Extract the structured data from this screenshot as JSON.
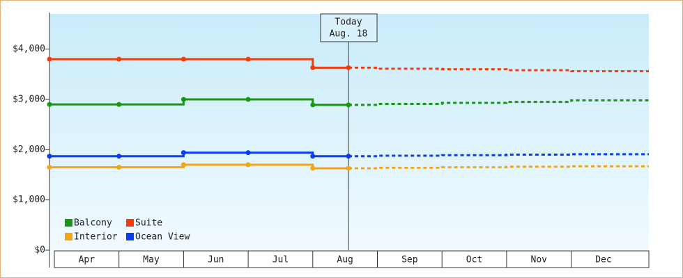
{
  "chart_data": {
    "type": "step-line",
    "categories": [
      "Apr",
      "May",
      "Jun",
      "Jul",
      "Aug",
      "Sep",
      "Oct",
      "Nov",
      "Dec"
    ],
    "today_label": [
      "Today",
      "Aug. 18"
    ],
    "ylim": [
      0,
      4700
    ],
    "yticks": [
      {
        "value": 0,
        "label": "$0"
      },
      {
        "value": 1000,
        "label": "$1,000"
      },
      {
        "value": 2000,
        "label": "$2,000"
      },
      {
        "value": 3000,
        "label": "$3,000"
      },
      {
        "value": 4000,
        "label": "$4,000"
      }
    ],
    "series": [
      {
        "name": "Balcony",
        "color": "#17990f",
        "values": [
          2900,
          2900,
          3000,
          3000,
          2890,
          null,
          null,
          null,
          null
        ],
        "forecast": [
          null,
          null,
          null,
          null,
          2890,
          2910,
          2930,
          2950,
          2980
        ]
      },
      {
        "name": "Suite",
        "color": "#f23c0c",
        "values": [
          3800,
          3800,
          3800,
          3800,
          3630,
          null,
          null,
          null,
          null
        ],
        "forecast": [
          null,
          null,
          null,
          null,
          3630,
          3610,
          3600,
          3580,
          3560
        ]
      },
      {
        "name": "Interior",
        "color": "#f5a512",
        "values": [
          1650,
          1650,
          1700,
          1700,
          1630,
          null,
          null,
          null,
          null
        ],
        "forecast": [
          null,
          null,
          null,
          null,
          1630,
          1640,
          1650,
          1660,
          1670
        ]
      },
      {
        "name": "Ocean View",
        "color": "#0c3cf2",
        "values": [
          1870,
          1870,
          1940,
          1940,
          1870,
          null,
          null,
          null,
          null
        ],
        "forecast": [
          null,
          null,
          null,
          null,
          1870,
          1880,
          1890,
          1900,
          1910
        ]
      }
    ]
  }
}
